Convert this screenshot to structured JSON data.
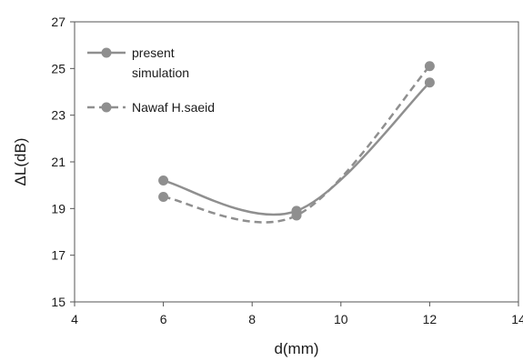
{
  "chart_data": {
    "type": "line",
    "title": "",
    "xlabel": "d(mm)",
    "ylabel": "ΔL(dB)",
    "xlim": [
      4,
      14
    ],
    "ylim": [
      15,
      27
    ],
    "xticks": [
      "4",
      "6",
      "8",
      "10",
      "12",
      "14"
    ],
    "yticks": [
      "15",
      "17",
      "19",
      "21",
      "23",
      "25",
      "27"
    ],
    "grid": false,
    "legend_position": "top-left",
    "series": [
      {
        "name": "present simulation",
        "name_lines": [
          "present",
          "simulation"
        ],
        "style": "solid",
        "color": "#8f8f8f",
        "x": [
          6,
          9,
          12
        ],
        "y": [
          20.2,
          18.9,
          24.4
        ]
      },
      {
        "name": "Nawaf H.saeid",
        "name_lines": [
          "Nawaf H.saeid"
        ],
        "style": "dashed",
        "color": "#8f8f8f",
        "x": [
          6,
          9,
          12
        ],
        "y": [
          19.5,
          18.7,
          25.1
        ]
      }
    ]
  }
}
